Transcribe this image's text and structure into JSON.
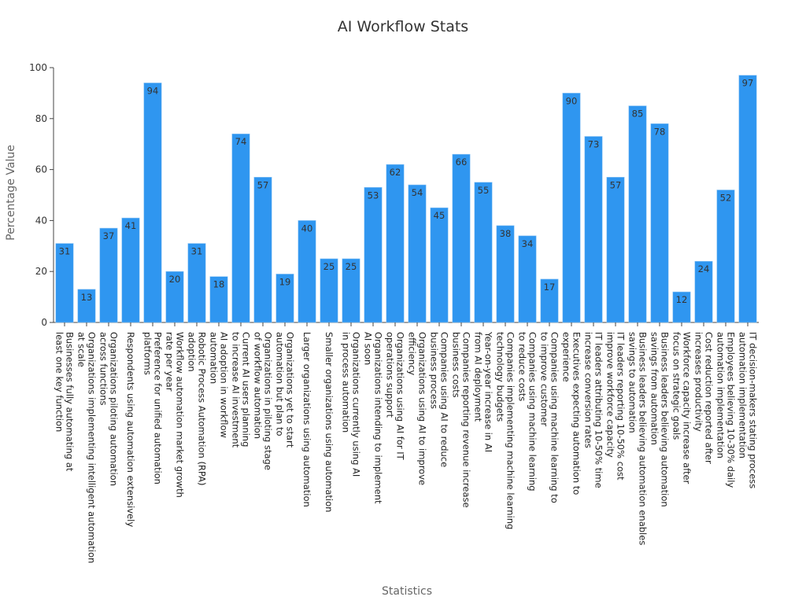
{
  "chart_data": {
    "type": "bar",
    "title": "AI Workflow Stats",
    "xlabel": "Statistics",
    "ylabel": "Percentage Value",
    "ylim": [
      0,
      100
    ],
    "yticks": [
      0,
      20,
      40,
      60,
      80,
      100
    ],
    "grid": false,
    "legend": "none",
    "bar_color": "#2F96F0",
    "categories": [
      [
        "Businesses fully automating at",
        "least one key function"
      ],
      [
        "Organizations implementing intelligent automation",
        "at scale"
      ],
      [
        "Organizations piloting automation",
        "across functions"
      ],
      [
        "Respondents using automation extensively"
      ],
      [
        "Preference for unified automation",
        "platforms"
      ],
      [
        "Workflow automation market growth",
        "rate per year"
      ],
      [
        "Robotic Process Automation (RPA)",
        "adoption"
      ],
      [
        "AI adoption in workflow",
        "automation"
      ],
      [
        "Current AI users planning",
        "to increase AI investment"
      ],
      [
        "Organizations in piloting stage",
        "of workflow automation"
      ],
      [
        "Organizations yet to start",
        "automation but plan to"
      ],
      [
        "Larger organizations using automation"
      ],
      [
        "Smaller organizations using automation"
      ],
      [
        "Organizations currently using AI",
        "in process automation"
      ],
      [
        "Organizations intending to implement",
        "AI soon"
      ],
      [
        "Organizations using AI for IT",
        "operations support"
      ],
      [
        "Organizations using AI to improve",
        "efficiency"
      ],
      [
        "Companies using AI to reduce",
        "business process"
      ],
      [
        "Companies reporting revenue increase",
        "business costs"
      ],
      [
        "Year-on-year increase in AI",
        "from AI deployment"
      ],
      [
        "Companies implementing machine learning",
        "technology budgets"
      ],
      [
        "Companies using machine learning",
        "to reduce costs"
      ],
      [
        "Companies using machine learning to",
        "to improve customer"
      ],
      [
        "Executives expecting automation to",
        "experience"
      ],
      [
        "IT leaders attributing 10-50% time",
        "increase conversion rates"
      ],
      [
        "IT leaders reporting 10-50% cost",
        "improve workforce capacity"
      ],
      [
        "Business leaders believing automation enables",
        "savings to automation"
      ],
      [
        "Business leaders believing automation",
        "savings from automation"
      ],
      [
        "Workforce capacity increase after",
        "focus on strategic goals"
      ],
      [
        "Cost reduction reported after",
        "increases productivity"
      ],
      [
        "Employees believing 10-30% daily",
        "automation implementation"
      ],
      [
        "IT decision-makers stating process",
        "automation implementation"
      ]
    ],
    "values": [
      31,
      13,
      37,
      41,
      94,
      20,
      31,
      18,
      74,
      57,
      19,
      40,
      25,
      25,
      53,
      62,
      54,
      45,
      66,
      55,
      38,
      34,
      17,
      90,
      73,
      57,
      85,
      78,
      12,
      24,
      52,
      97
    ]
  }
}
